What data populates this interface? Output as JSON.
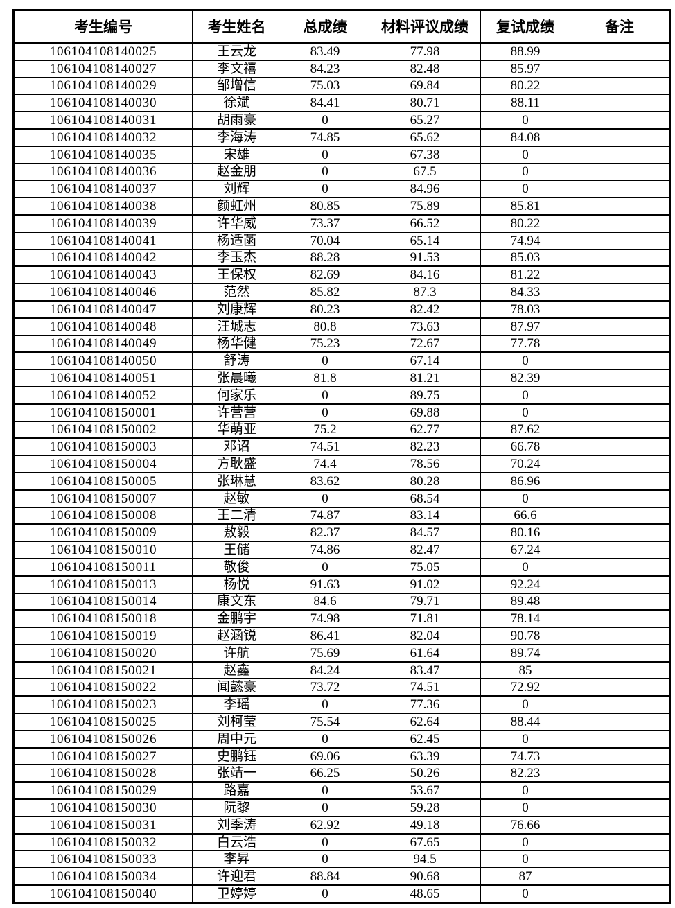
{
  "table": {
    "headers": [
      "考生编号",
      "考生姓名",
      "总成绩",
      "材料评议成绩",
      "复试成绩",
      "备注"
    ],
    "rows": [
      {
        "id": "106104108140025",
        "name": "王云龙",
        "total": "83.49",
        "material": "77.98",
        "retest": "88.99",
        "remark": ""
      },
      {
        "id": "106104108140027",
        "name": "李文禧",
        "total": "84.23",
        "material": "82.48",
        "retest": "85.97",
        "remark": ""
      },
      {
        "id": "106104108140029",
        "name": "邹增信",
        "total": "75.03",
        "material": "69.84",
        "retest": "80.22",
        "remark": ""
      },
      {
        "id": "106104108140030",
        "name": "徐斌",
        "total": "84.41",
        "material": "80.71",
        "retest": "88.11",
        "remark": ""
      },
      {
        "id": "106104108140031",
        "name": "胡雨豪",
        "total": "0",
        "material": "65.27",
        "retest": "0",
        "remark": ""
      },
      {
        "id": "106104108140032",
        "name": "李海涛",
        "total": "74.85",
        "material": "65.62",
        "retest": "84.08",
        "remark": ""
      },
      {
        "id": "106104108140035",
        "name": "宋雄",
        "total": "0",
        "material": "67.38",
        "retest": "0",
        "remark": ""
      },
      {
        "id": "106104108140036",
        "name": "赵金朋",
        "total": "0",
        "material": "67.5",
        "retest": "0",
        "remark": ""
      },
      {
        "id": "106104108140037",
        "name": "刘辉",
        "total": "0",
        "material": "84.96",
        "retest": "0",
        "remark": ""
      },
      {
        "id": "106104108140038",
        "name": "颜虹州",
        "total": "80.85",
        "material": "75.89",
        "retest": "85.81",
        "remark": ""
      },
      {
        "id": "106104108140039",
        "name": "许华威",
        "total": "73.37",
        "material": "66.52",
        "retest": "80.22",
        "remark": ""
      },
      {
        "id": "106104108140041",
        "name": "杨适菡",
        "total": "70.04",
        "material": "65.14",
        "retest": "74.94",
        "remark": ""
      },
      {
        "id": "106104108140042",
        "name": "李玉杰",
        "total": "88.28",
        "material": "91.53",
        "retest": "85.03",
        "remark": ""
      },
      {
        "id": "106104108140043",
        "name": "王保权",
        "total": "82.69",
        "material": "84.16",
        "retest": "81.22",
        "remark": ""
      },
      {
        "id": "106104108140046",
        "name": "范然",
        "total": "85.82",
        "material": "87.3",
        "retest": "84.33",
        "remark": ""
      },
      {
        "id": "106104108140047",
        "name": "刘康辉",
        "total": "80.23",
        "material": "82.42",
        "retest": "78.03",
        "remark": ""
      },
      {
        "id": "106104108140048",
        "name": "汪城志",
        "total": "80.8",
        "material": "73.63",
        "retest": "87.97",
        "remark": ""
      },
      {
        "id": "106104108140049",
        "name": "杨华健",
        "total": "75.23",
        "material": "72.67",
        "retest": "77.78",
        "remark": ""
      },
      {
        "id": "106104108140050",
        "name": "舒涛",
        "total": "0",
        "material": "67.14",
        "retest": "0",
        "remark": ""
      },
      {
        "id": "106104108140051",
        "name": "张晨曦",
        "total": "81.8",
        "material": "81.21",
        "retest": "82.39",
        "remark": ""
      },
      {
        "id": "106104108140052",
        "name": "何家乐",
        "total": "0",
        "material": "89.75",
        "retest": "0",
        "remark": ""
      },
      {
        "id": "106104108150001",
        "name": "许营营",
        "total": "0",
        "material": "69.88",
        "retest": "0",
        "remark": ""
      },
      {
        "id": "106104108150002",
        "name": "华萌亚",
        "total": "75.2",
        "material": "62.77",
        "retest": "87.62",
        "remark": ""
      },
      {
        "id": "106104108150003",
        "name": "邓诏",
        "total": "74.51",
        "material": "82.23",
        "retest": "66.78",
        "remark": ""
      },
      {
        "id": "106104108150004",
        "name": "方耿盛",
        "total": "74.4",
        "material": "78.56",
        "retest": "70.24",
        "remark": ""
      },
      {
        "id": "106104108150005",
        "name": "张琳慧",
        "total": "83.62",
        "material": "80.28",
        "retest": "86.96",
        "remark": ""
      },
      {
        "id": "106104108150007",
        "name": "赵敏",
        "total": "0",
        "material": "68.54",
        "retest": "0",
        "remark": ""
      },
      {
        "id": "106104108150008",
        "name": "王二清",
        "total": "74.87",
        "material": "83.14",
        "retest": "66.6",
        "remark": ""
      },
      {
        "id": "106104108150009",
        "name": "敖毅",
        "total": "82.37",
        "material": "84.57",
        "retest": "80.16",
        "remark": ""
      },
      {
        "id": "106104108150010",
        "name": "王储",
        "total": "74.86",
        "material": "82.47",
        "retest": "67.24",
        "remark": ""
      },
      {
        "id": "106104108150011",
        "name": "敬俊",
        "total": "0",
        "material": "75.05",
        "retest": "0",
        "remark": ""
      },
      {
        "id": "106104108150013",
        "name": "杨悦",
        "total": "91.63",
        "material": "91.02",
        "retest": "92.24",
        "remark": ""
      },
      {
        "id": "106104108150014",
        "name": "康文东",
        "total": "84.6",
        "material": "79.71",
        "retest": "89.48",
        "remark": ""
      },
      {
        "id": "106104108150018",
        "name": "金鹏宇",
        "total": "74.98",
        "material": "71.81",
        "retest": "78.14",
        "remark": ""
      },
      {
        "id": "106104108150019",
        "name": "赵涵锐",
        "total": "86.41",
        "material": "82.04",
        "retest": "90.78",
        "remark": ""
      },
      {
        "id": "106104108150020",
        "name": "许航",
        "total": "75.69",
        "material": "61.64",
        "retest": "89.74",
        "remark": ""
      },
      {
        "id": "106104108150021",
        "name": "赵鑫",
        "total": "84.24",
        "material": "83.47",
        "retest": "85",
        "remark": ""
      },
      {
        "id": "106104108150022",
        "name": "闻懿豪",
        "total": "73.72",
        "material": "74.51",
        "retest": "72.92",
        "remark": ""
      },
      {
        "id": "106104108150023",
        "name": "李瑶",
        "total": "0",
        "material": "77.36",
        "retest": "0",
        "remark": ""
      },
      {
        "id": "106104108150025",
        "name": "刘柯莹",
        "total": "75.54",
        "material": "62.64",
        "retest": "88.44",
        "remark": ""
      },
      {
        "id": "106104108150026",
        "name": "周中元",
        "total": "0",
        "material": "62.45",
        "retest": "0",
        "remark": ""
      },
      {
        "id": "106104108150027",
        "name": "史鹏钰",
        "total": "69.06",
        "material": "63.39",
        "retest": "74.73",
        "remark": ""
      },
      {
        "id": "106104108150028",
        "name": "张靖一",
        "total": "66.25",
        "material": "50.26",
        "retest": "82.23",
        "remark": ""
      },
      {
        "id": "106104108150029",
        "name": "路嘉",
        "total": "0",
        "material": "53.67",
        "retest": "0",
        "remark": ""
      },
      {
        "id": "106104108150030",
        "name": "阮黎",
        "total": "0",
        "material": "59.28",
        "retest": "0",
        "remark": ""
      },
      {
        "id": "106104108150031",
        "name": "刘季涛",
        "total": "62.92",
        "material": "49.18",
        "retest": "76.66",
        "remark": ""
      },
      {
        "id": "106104108150032",
        "name": "白云浩",
        "total": "0",
        "material": "67.65",
        "retest": "0",
        "remark": ""
      },
      {
        "id": "106104108150033",
        "name": "李昇",
        "total": "0",
        "material": "94.5",
        "retest": "0",
        "remark": ""
      },
      {
        "id": "106104108150034",
        "name": "许迎君",
        "total": "88.84",
        "material": "90.68",
        "retest": "87",
        "remark": ""
      },
      {
        "id": "106104108150040",
        "name": "卫婷婷",
        "total": "0",
        "material": "48.65",
        "retest": "0",
        "remark": ""
      }
    ]
  }
}
